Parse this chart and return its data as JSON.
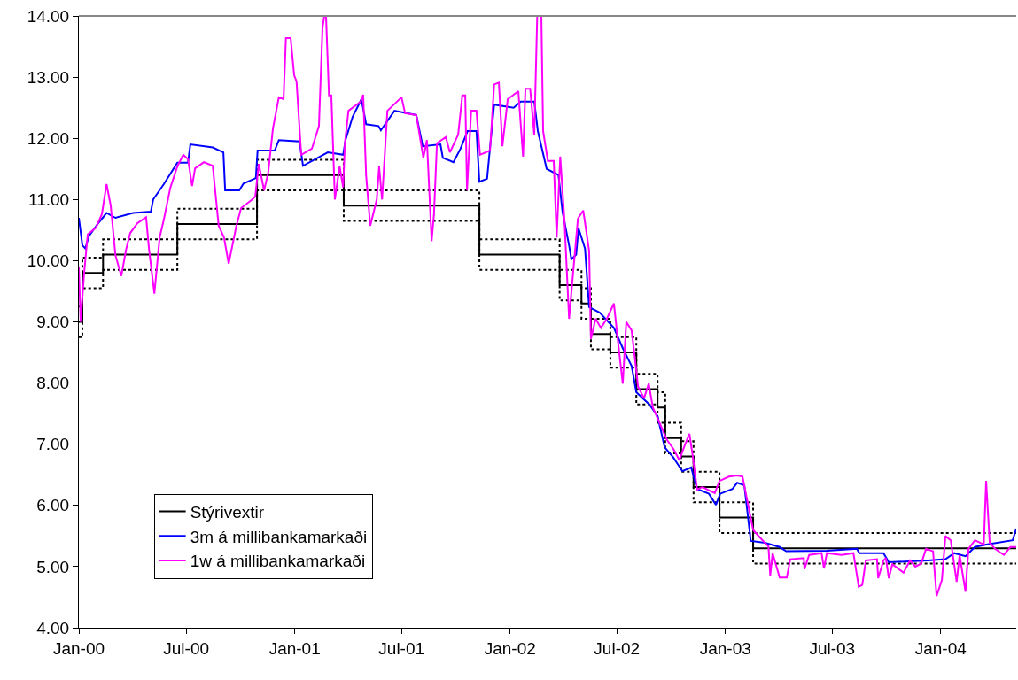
{
  "chart_data": {
    "type": "line",
    "xlim": [
      "2000-01-01",
      "2004-05-08"
    ],
    "xticks": [
      {
        "value": "2000-01-01",
        "label": "Jan-00"
      },
      {
        "value": "2000-07-01",
        "label": "Jul-00"
      },
      {
        "value": "2001-01-01",
        "label": "Jan-01"
      },
      {
        "value": "2001-07-01",
        "label": "Jul-01"
      },
      {
        "value": "2002-01-01",
        "label": "Jan-02"
      },
      {
        "value": "2002-07-01",
        "label": "Jul-02"
      },
      {
        "value": "2003-01-01",
        "label": "Jan-03"
      },
      {
        "value": "2003-07-01",
        "label": "Jul-03"
      },
      {
        "value": "2004-01-01",
        "label": "Jan-04"
      }
    ],
    "ylim": [
      4,
      14
    ],
    "yticks": [
      {
        "value": 4,
        "label": "4.00"
      },
      {
        "value": 5,
        "label": "5.00"
      },
      {
        "value": 6,
        "label": "6.00"
      },
      {
        "value": 7,
        "label": "7.00"
      },
      {
        "value": 8,
        "label": "8.00"
      },
      {
        "value": 9,
        "label": "9.00"
      },
      {
        "value": 10,
        "label": "10.00"
      },
      {
        "value": 11,
        "label": "11.00"
      },
      {
        "value": 12,
        "label": "12.00"
      },
      {
        "value": 13,
        "label": "13.00"
      },
      {
        "value": 14,
        "label": "14.00"
      }
    ],
    "grid": false,
    "legend": "bottom left",
    "marker": "none",
    "series": [
      {
        "type": "step",
        "line_style": "dotted",
        "color": "#000000",
        "x": [
          "2000-01-01",
          "2000-01-07",
          "2000-02-11",
          "2000-06-16",
          "2000-10-29",
          "2001-03-25",
          "2001-11-10",
          "2002-03-26",
          "2002-05-02",
          "2002-05-18",
          "2002-06-20",
          "2002-08-03",
          "2002-09-08",
          "2002-09-21",
          "2002-10-18",
          "2002-11-08",
          "2002-12-22",
          "2003-02-17",
          "2004-05-08"
        ],
        "values": [
          9.25,
          10.05,
          10.35,
          10.85,
          11.65,
          11.15,
          10.35,
          9.85,
          9.55,
          9.05,
          8.75,
          8.15,
          7.85,
          7.35,
          7.05,
          6.55,
          6.05,
          5.55,
          5.55
        ]
      },
      {
        "type": "step",
        "line_style": "dotted",
        "color": "#000000",
        "x": [
          "2000-01-01",
          "2000-01-07",
          "2000-02-11",
          "2000-06-16",
          "2000-10-29",
          "2001-03-25",
          "2001-11-10",
          "2002-03-26",
          "2002-05-02",
          "2002-05-18",
          "2002-06-20",
          "2002-08-03",
          "2002-09-08",
          "2002-09-21",
          "2002-10-18",
          "2002-11-08",
          "2002-12-22",
          "2003-02-17",
          "2004-05-08"
        ],
        "values": [
          8.75,
          9.55,
          9.85,
          10.35,
          11.15,
          10.65,
          9.85,
          9.35,
          9.05,
          8.55,
          8.25,
          7.65,
          7.35,
          6.85,
          6.55,
          6.05,
          5.55,
          5.05,
          5.05
        ]
      },
      {
        "name": "Stýrivextir",
        "type": "step",
        "line_style": "solid",
        "color": "#000000",
        "x": [
          "2000-01-01",
          "2000-01-07",
          "2000-02-11",
          "2000-06-16",
          "2000-10-29",
          "2001-03-25",
          "2001-11-10",
          "2002-03-26",
          "2002-05-02",
          "2002-05-18",
          "2002-06-20",
          "2002-08-03",
          "2002-09-08",
          "2002-09-21",
          "2002-10-18",
          "2002-11-08",
          "2002-12-22",
          "2003-02-17",
          "2004-05-08"
        ],
        "values": [
          9.0,
          9.8,
          10.1,
          10.6,
          11.4,
          10.9,
          10.1,
          9.6,
          9.3,
          8.8,
          8.5,
          7.9,
          7.6,
          7.1,
          6.8,
          6.3,
          5.8,
          5.3,
          5.3
        ]
      },
      {
        "name": "3m á millibankamarkaði",
        "line_style": "solid",
        "color": "#0000ff",
        "x": [
          "2000-01-01",
          "2000-01-07",
          "2000-01-12",
          "2000-01-18",
          "2000-02-02",
          "2000-02-17",
          "2000-03-03",
          "2000-04-02",
          "2000-05-02",
          "2000-05-06",
          "2000-05-24",
          "2000-06-16",
          "2000-07-04",
          "2000-07-08",
          "2000-08-15",
          "2000-09-02",
          "2000-09-05",
          "2000-09-29",
          "2000-10-06",
          "2000-10-27",
          "2000-10-30",
          "2000-11-28",
          "2000-12-05",
          "2001-01-09",
          "2001-01-15",
          "2001-02-26",
          "2001-03-24",
          "2001-03-28",
          "2001-04-09",
          "2001-04-24",
          "2001-05-02",
          "2001-05-23",
          "2001-05-27",
          "2001-06-19",
          "2001-07-26",
          "2001-08-06",
          "2001-09-05",
          "2001-09-09",
          "2001-09-27",
          "2001-10-09",
          "2001-10-21",
          "2001-11-05",
          "2001-11-10",
          "2001-11-23",
          "2001-12-05",
          "2002-01-07",
          "2002-01-19",
          "2002-02-11",
          "2002-02-17",
          "2002-03-04",
          "2002-03-24",
          "2002-03-31",
          "2002-04-11",
          "2002-04-15",
          "2002-04-23",
          "2002-04-27",
          "2002-05-08",
          "2002-05-15",
          "2002-06-02",
          "2002-06-26",
          "2002-07-11",
          "2002-07-26",
          "2002-08-03",
          "2002-08-25",
          "2002-09-08",
          "2002-09-20",
          "2002-10-05",
          "2002-10-20",
          "2002-11-04",
          "2002-11-14",
          "2002-12-04",
          "2002-12-16",
          "2002-12-23",
          "2003-01-13",
          "2003-01-21",
          "2003-02-02",
          "2003-02-13",
          "2003-03-09",
          "2003-04-03",
          "2003-04-14",
          "2003-06-22",
          "2003-08-12",
          "2003-08-16",
          "2003-09-26",
          "2003-10-05",
          "2003-12-10",
          "2004-01-09",
          "2004-01-24",
          "2004-02-12",
          "2004-02-28",
          "2004-03-18",
          "2004-05-02",
          "2004-05-08"
        ],
        "values": [
          10.7,
          10.25,
          10.2,
          10.4,
          10.6,
          10.78,
          10.7,
          10.78,
          10.8,
          11.0,
          11.25,
          11.6,
          11.6,
          11.9,
          11.85,
          11.77,
          11.15,
          11.15,
          11.26,
          11.35,
          11.8,
          11.8,
          11.97,
          11.95,
          11.55,
          11.77,
          11.73,
          11.97,
          12.35,
          12.64,
          12.23,
          12.2,
          12.13,
          12.45,
          12.38,
          11.87,
          11.9,
          11.68,
          11.61,
          11.83,
          12.12,
          12.12,
          11.29,
          11.34,
          12.55,
          12.5,
          12.6,
          12.6,
          12.12,
          11.5,
          11.4,
          10.79,
          10.25,
          10.02,
          10.1,
          10.53,
          10.2,
          9.24,
          9.15,
          8.9,
          8.57,
          8.28,
          7.85,
          7.65,
          7.46,
          6.95,
          6.78,
          6.56,
          6.62,
          6.27,
          6.19,
          6.01,
          6.19,
          6.27,
          6.37,
          6.33,
          5.42,
          5.39,
          5.32,
          5.25,
          5.26,
          5.29,
          5.22,
          5.22,
          5.07,
          5.1,
          5.12,
          5.22,
          5.17,
          5.32,
          5.36,
          5.43,
          5.62
        ]
      },
      {
        "name": "1w á millibankamarkaði",
        "line_style": "solid",
        "color": "#ff00ff",
        "x": [
          "2000-01-01",
          "2000-01-04",
          "2000-01-10",
          "2000-01-16",
          "2000-01-30",
          "2000-02-09",
          "2000-02-17",
          "2000-02-24",
          "2000-03-03",
          "2000-03-13",
          "2000-03-21",
          "2000-03-28",
          "2000-04-09",
          "2000-04-24",
          "2000-04-29",
          "2000-05-08",
          "2000-05-17",
          "2000-05-24",
          "2000-06-04",
          "2000-06-16",
          "2000-06-26",
          "2000-07-04",
          "2000-07-11",
          "2000-07-16",
          "2000-07-31",
          "2000-08-15",
          "2000-08-25",
          "2000-09-03",
          "2000-09-11",
          "2000-09-24",
          "2000-10-02",
          "2000-10-21",
          "2000-10-26",
          "2000-11-01",
          "2000-11-10",
          "2000-11-17",
          "2000-11-25",
          "2000-12-05",
          "2000-12-13",
          "2000-12-17",
          "2000-12-25",
          "2000-12-31",
          "2001-01-04",
          "2001-01-12",
          "2001-01-30",
          "2001-02-11",
          "2001-02-17",
          "2001-02-20",
          "2001-02-23",
          "2001-02-28",
          "2001-03-04",
          "2001-03-10",
          "2001-03-18",
          "2001-03-24",
          "2001-03-27",
          "2001-04-02",
          "2001-04-23",
          "2001-04-27",
          "2001-05-02",
          "2001-05-09",
          "2001-05-20",
          "2001-05-24",
          "2001-05-29",
          "2001-06-07",
          "2001-07-01",
          "2001-07-07",
          "2001-07-26",
          "2001-08-07",
          "2001-08-13",
          "2001-08-21",
          "2001-08-25",
          "2001-08-30",
          "2001-09-14",
          "2001-09-21",
          "2001-10-05",
          "2001-10-12",
          "2001-10-17",
          "2001-10-20",
          "2001-10-27",
          "2001-11-05",
          "2001-11-11",
          "2001-11-28",
          "2001-12-05",
          "2001-12-13",
          "2001-12-19",
          "2001-12-28",
          "2002-01-15",
          "2002-01-23",
          "2002-01-27",
          "2002-02-04",
          "2002-02-11",
          "2002-02-16",
          "2002-02-23",
          "2002-02-26",
          "2002-03-06",
          "2002-03-16",
          "2002-03-21",
          "2002-03-27",
          "2002-04-03",
          "2002-04-11",
          "2002-04-18",
          "2002-04-26",
          "2002-05-05",
          "2002-05-15",
          "2002-05-18",
          "2002-05-26",
          "2002-06-04",
          "2002-06-14",
          "2002-06-26",
          "2002-07-02",
          "2002-07-11",
          "2002-07-17",
          "2002-07-26",
          "2002-08-01",
          "2002-08-06",
          "2002-08-16",
          "2002-08-24",
          "2002-08-31",
          "2002-09-15",
          "2002-09-24",
          "2002-10-05",
          "2002-10-15",
          "2002-10-24",
          "2002-11-01",
          "2002-11-07",
          "2002-11-14",
          "2002-11-23",
          "2002-12-14",
          "2002-12-22",
          "2003-01-07",
          "2003-01-21",
          "2003-01-30",
          "2003-02-17",
          "2003-02-28",
          "2003-03-15",
          "2003-03-18",
          "2003-03-22",
          "2003-04-03",
          "2003-04-15",
          "2003-04-21",
          "2003-05-14",
          "2003-05-15",
          "2003-05-23",
          "2003-06-13",
          "2003-06-17",
          "2003-06-22",
          "2003-07-17",
          "2003-08-06",
          "2003-08-15",
          "2003-08-21",
          "2003-08-27",
          "2003-09-15",
          "2003-09-17",
          "2003-09-26",
          "2003-09-30",
          "2003-10-05",
          "2003-10-11",
          "2003-10-30",
          "2003-11-10",
          "2003-11-19",
          "2003-11-29",
          "2003-12-07",
          "2003-12-19",
          "2003-12-25",
          "2004-01-03",
          "2004-01-09",
          "2004-01-18",
          "2004-01-28",
          "2004-02-02",
          "2004-02-12",
          "2004-02-17",
          "2004-02-28",
          "2004-03-14",
          "2004-03-18",
          "2004-03-24",
          "2004-04-02",
          "2004-04-17",
          "2004-04-28",
          "2004-05-08"
        ],
        "values": [
          9.9,
          9.0,
          9.8,
          10.43,
          10.54,
          10.76,
          11.25,
          10.9,
          10.09,
          9.75,
          10.18,
          10.45,
          10.61,
          10.71,
          10.18,
          9.46,
          10.38,
          10.67,
          11.19,
          11.54,
          11.73,
          11.66,
          11.22,
          11.51,
          11.61,
          11.55,
          10.57,
          10.38,
          9.95,
          10.57,
          10.86,
          11.0,
          11.05,
          11.58,
          11.15,
          11.44,
          12.16,
          12.67,
          12.64,
          13.64,
          13.64,
          13.03,
          12.93,
          11.73,
          11.83,
          12.2,
          13.8,
          14.0,
          14.0,
          12.7,
          12.7,
          11.0,
          11.54,
          11.2,
          11.92,
          12.45,
          12.6,
          12.71,
          11.39,
          10.57,
          11.0,
          11.54,
          11.0,
          12.45,
          12.67,
          12.41,
          12.38,
          11.68,
          11.97,
          10.32,
          10.76,
          11.92,
          12.02,
          11.77,
          12.06,
          12.7,
          12.7,
          11.15,
          12.45,
          12.45,
          11.73,
          11.8,
          12.88,
          12.91,
          11.87,
          12.64,
          12.77,
          11.7,
          12.81,
          12.81,
          12.06,
          14.0,
          14.0,
          12.12,
          11.63,
          11.63,
          10.38,
          11.7,
          10.69,
          9.05,
          9.82,
          10.69,
          10.82,
          10.16,
          8.72,
          9.05,
          8.9,
          9.05,
          9.3,
          8.76,
          7.99,
          9.0,
          8.86,
          8.37,
          7.94,
          7.75,
          7.99,
          7.6,
          7.27,
          7.07,
          6.92,
          6.74,
          6.98,
          7.17,
          6.78,
          6.26,
          6.3,
          6.2,
          6.4,
          6.47,
          6.49,
          6.47,
          5.6,
          5.48,
          5.33,
          4.85,
          5.22,
          4.82,
          4.82,
          5.12,
          5.14,
          4.96,
          5.19,
          5.22,
          4.97,
          5.22,
          5.19,
          5.22,
          4.67,
          4.7,
          5.1,
          5.12,
          4.81,
          5.1,
          5.14,
          4.81,
          5.04,
          4.9,
          5.1,
          5.0,
          5.05,
          5.29,
          5.25,
          4.52,
          4.78,
          5.5,
          5.43,
          4.75,
          5.19,
          4.59,
          5.29,
          5.43,
          5.36,
          6.4,
          5.39,
          5.29,
          5.19,
          5.32,
          5.32
        ]
      }
    ]
  }
}
